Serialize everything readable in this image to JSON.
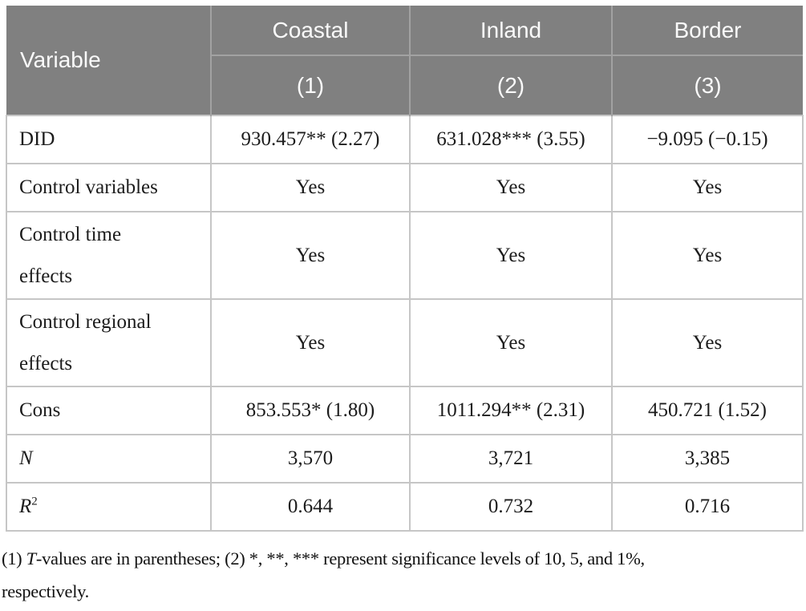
{
  "colors": {
    "header_background": "#808080",
    "header_divider": "#a2a2a2",
    "header_text": "#fafafa",
    "body_border": "#c6c6c6",
    "body_text": "#1c1c1c"
  },
  "table": {
    "header": {
      "variable_label": "Variable",
      "groups": [
        {
          "label": "Coastal",
          "number": "(1)"
        },
        {
          "label": "Inland",
          "number": "(2)"
        },
        {
          "label": "Border",
          "number": "(3)"
        }
      ]
    },
    "rows": [
      {
        "label": "DID",
        "values": [
          "930.457** (2.27)",
          "631.028*** (3.55)",
          "−9.095 (−0.15)"
        ]
      },
      {
        "label": "Control variables",
        "values": [
          "Yes",
          "Yes",
          "Yes"
        ]
      },
      {
        "label_line1": "Control time",
        "label_line2": "effects",
        "values": [
          "Yes",
          "Yes",
          "Yes"
        ]
      },
      {
        "label_line1": "Control regional",
        "label_line2": "effects",
        "values": [
          "Yes",
          "Yes",
          "Yes"
        ]
      },
      {
        "label": "Cons",
        "values": [
          "853.553* (1.80)",
          "1011.294** (2.31)",
          "450.721 (1.52)"
        ]
      },
      {
        "label": "N",
        "values": [
          "3,570",
          "3,721",
          "3,385"
        ]
      },
      {
        "label": "R",
        "label_sup": "2",
        "values": [
          "0.644",
          "0.732",
          "0.716"
        ]
      }
    ]
  },
  "footnote": {
    "part1": "(1) ",
    "italic_t": "T",
    "part2": "-values are in parentheses; (2) *, **, *** represent significance levels of 10, 5, and 1%,",
    "line2": "respectively."
  }
}
